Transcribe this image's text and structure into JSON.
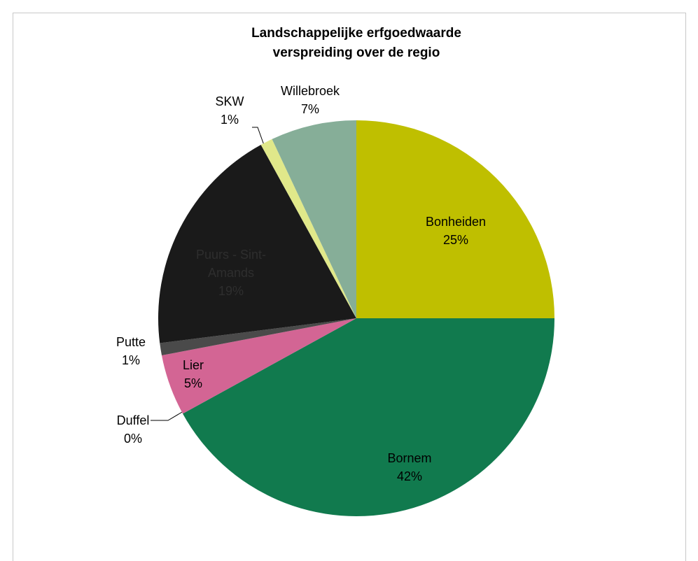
{
  "chart_data": {
    "type": "pie",
    "title": "Landschappelijke erfgoedwaarde verspreiding over de regio",
    "categories": [
      "Bonheiden",
      "Bornem",
      "Duffel",
      "Lier",
      "Putte",
      "Puurs - Sint-Amands",
      "SKW",
      "Willebroek"
    ],
    "values": [
      25,
      42,
      0,
      5,
      1,
      19,
      1,
      7
    ],
    "value_labels": [
      "25%",
      "42%",
      "0%",
      "5%",
      "1%",
      "19%",
      "1%",
      "7%"
    ],
    "colors": [
      "#bfbf00",
      "#117a4e",
      "#9e9e9e",
      "#d36594",
      "#4a4a4a",
      "#1a1a1a",
      "#e0e88a",
      "#86ae98"
    ]
  }
}
